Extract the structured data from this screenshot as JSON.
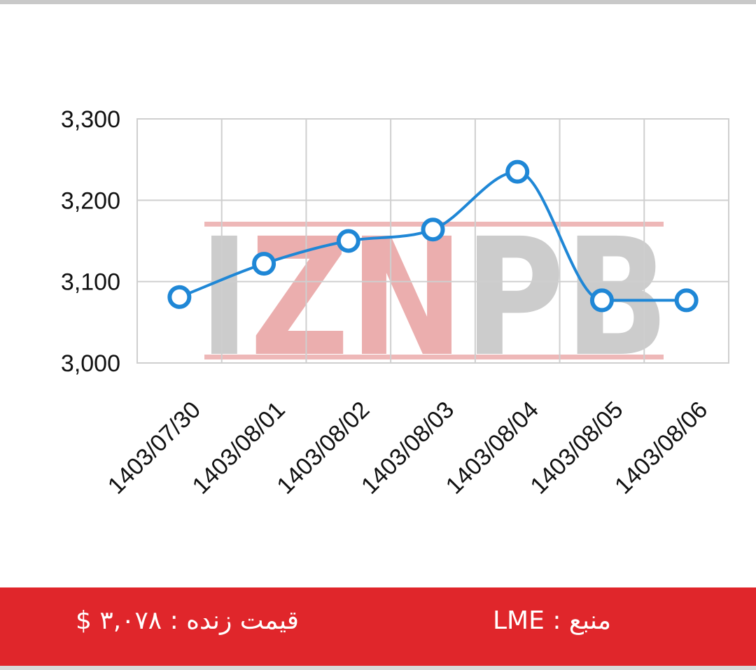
{
  "watermark": {
    "text": "IZNPB",
    "colors": {
      "accent": "#e8a0a0",
      "gray": "#c4c4c4"
    }
  },
  "chart_data": {
    "type": "line",
    "title": "",
    "xlabel": "",
    "ylabel": "",
    "categories": [
      "1403/07/30",
      "1403/08/01",
      "1403/08/02",
      "1403/08/03",
      "1403/08/04",
      "1403/08/05",
      "1403/08/06"
    ],
    "series": [
      {
        "values": [
          3081,
          3122,
          3150,
          3164,
          3235,
          3077,
          3077
        ],
        "color": "#1f87d6"
      }
    ],
    "ylim": [
      3000,
      3300
    ],
    "yticks": [
      3000,
      3100,
      3200,
      3300
    ],
    "ytick_labels": [
      "3,000",
      "3,100",
      "3,200",
      "3,300"
    ],
    "grid": true,
    "curve": "smooth",
    "marker": "hollow-circle"
  },
  "footer": {
    "price_text": "قیمت زنده : ۳,۰۷۸ $",
    "source_text": "منبع : LME",
    "background": "#e0262b"
  }
}
